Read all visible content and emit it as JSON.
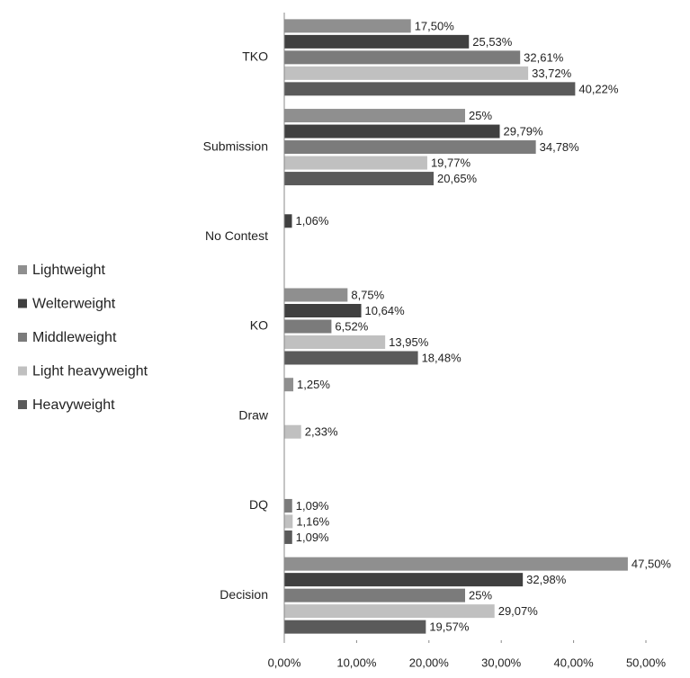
{
  "chart_data": {
    "type": "bar",
    "orientation": "horizontal",
    "categories": [
      "TKO",
      "Submission",
      "No Contest",
      "KO",
      "Draw",
      "DQ",
      "Decision"
    ],
    "series": [
      {
        "name": "Lightweight",
        "color": "#8f8f8f",
        "values": [
          17.5,
          25,
          null,
          8.75,
          1.25,
          null,
          47.5
        ],
        "value_labels": [
          "17,50%",
          "25%",
          null,
          "8,75%",
          "1,25%",
          null,
          "47,50%"
        ]
      },
      {
        "name": "Welterweight",
        "color": "#404040",
        "values": [
          25.53,
          29.79,
          1.06,
          10.64,
          null,
          null,
          32.98
        ],
        "value_labels": [
          "25,53%",
          "29,79%",
          "1,06%",
          "10,64%",
          null,
          null,
          "32,98%"
        ]
      },
      {
        "name": "Middleweight",
        "color": "#7b7b7b",
        "values": [
          32.61,
          34.78,
          null,
          6.52,
          null,
          1.09,
          25
        ],
        "value_labels": [
          "32,61%",
          "34,78%",
          null,
          "6,52%",
          null,
          "1,09%",
          "25%"
        ]
      },
      {
        "name": "Light heavyweight",
        "color": "#c0c0c0",
        "values": [
          33.72,
          19.77,
          null,
          13.95,
          2.33,
          1.16,
          29.07
        ],
        "value_labels": [
          "33,72%",
          "19,77%",
          null,
          "13,95%",
          "2,33%",
          "1,16%",
          "29,07%"
        ]
      },
      {
        "name": "Heavyweight",
        "color": "#5a5a5a",
        "values": [
          40.22,
          20.65,
          null,
          18.48,
          null,
          1.09,
          19.57
        ],
        "value_labels": [
          "40,22%",
          "20,65%",
          null,
          "18,48%",
          null,
          "1,09%",
          "19,57%"
        ]
      }
    ],
    "xlim": [
      0,
      50
    ],
    "xticks": [
      {
        "value": 0,
        "label": "0,00%"
      },
      {
        "value": 10,
        "label": "10,00%"
      },
      {
        "value": 20,
        "label": "20,00%"
      },
      {
        "value": 30,
        "label": "30,00%"
      },
      {
        "value": 40,
        "label": "40,00%"
      },
      {
        "value": 50,
        "label": "50,00%"
      }
    ],
    "legend": "left",
    "grid": false
  }
}
